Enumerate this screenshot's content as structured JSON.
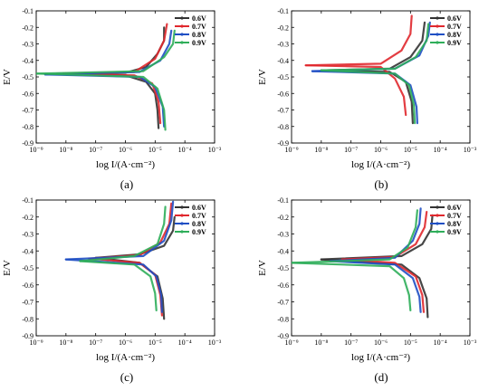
{
  "chart_data": [
    {
      "type": "line",
      "panel_label": "(a)",
      "xlabel": "log I/(A·cm⁻²)",
      "ylabel": "E/V",
      "x_scale": "log",
      "xlim": [
        1e-09,
        0.001
      ],
      "ylim": [
        -0.9,
        -0.1
      ],
      "x_tick_labels": [
        "10⁻⁹",
        "10⁻⁸",
        "10⁻⁷",
        "10⁻⁶",
        "10⁻⁵",
        "10⁻⁴",
        "10⁻³"
      ],
      "y_tick_labels": [
        "-0.9",
        "-0.8",
        "-0.7",
        "-0.6",
        "-0.5",
        "-0.4",
        "-0.3",
        "-0.2",
        "-0.1"
      ],
      "legend_position": "top-right",
      "series": [
        {
          "name": "0.6V",
          "color": "#333333",
          "x": [
            5e-09,
            1e-06,
            5e-06,
            1.2e-05,
            2e-05,
            2e-05
          ],
          "y": [
            -0.482,
            -0.475,
            -0.44,
            -0.36,
            -0.28,
            -0.2
          ]
        },
        {
          "name": "0.6V",
          "color": "#333333",
          "x": [
            5e-09,
            1e-06,
            5e-06,
            1e-05,
            1.2e-05,
            1.3e-05
          ],
          "y": [
            -0.482,
            -0.49,
            -0.53,
            -0.6,
            -0.7,
            -0.81
          ]
        },
        {
          "name": "0.7V",
          "color": "#e0282e",
          "x": [
            8e-09,
            2e-06,
            1e-05,
            2e-05,
            2.5e-05
          ],
          "y": [
            -0.48,
            -0.47,
            -0.39,
            -0.28,
            -0.18
          ]
        },
        {
          "name": "0.7V",
          "color": "#e0282e",
          "x": [
            8e-09,
            2e-06,
            8e-06,
            1.3e-05,
            1.5e-05
          ],
          "y": [
            -0.48,
            -0.49,
            -0.54,
            -0.65,
            -0.78
          ]
        },
        {
          "name": "0.8V",
          "color": "#1f4fc4",
          "x": [
            2e-09,
            3e-06,
            1.5e-05,
            3e-05,
            3.5e-05
          ],
          "y": [
            -0.485,
            -0.47,
            -0.4,
            -0.3,
            -0.22
          ]
        },
        {
          "name": "0.8V",
          "color": "#1f4fc4",
          "x": [
            2e-09,
            3e-06,
            1e-05,
            1.8e-05,
            2e-05
          ],
          "y": [
            -0.485,
            -0.5,
            -0.56,
            -0.68,
            -0.8
          ]
        },
        {
          "name": "0.9V",
          "color": "#2fae5a",
          "x": [
            1e-09,
            4e-06,
            2e-05,
            4e-05,
            4.5e-05
          ],
          "y": [
            -0.48,
            -0.465,
            -0.38,
            -0.3,
            -0.22
          ]
        },
        {
          "name": "0.9V",
          "color": "#2fae5a",
          "x": [
            1e-09,
            4e-06,
            1.2e-05,
            2e-05,
            2.2e-05
          ],
          "y": [
            -0.48,
            -0.5,
            -0.57,
            -0.7,
            -0.82
          ]
        }
      ]
    },
    {
      "type": "line",
      "panel_label": "(b)",
      "xlabel": "log I/(A·cm⁻²)",
      "ylabel": "E/V",
      "x_scale": "log",
      "xlim": [
        1e-09,
        0.001
      ],
      "ylim": [
        -0.9,
        -0.1
      ],
      "x_tick_labels": [
        "10⁻⁹",
        "10⁻⁸",
        "10⁻⁷",
        "10⁻⁶",
        "10⁻⁵",
        "10⁻⁴",
        "10⁻³"
      ],
      "y_tick_labels": [
        "-0.9",
        "-0.8",
        "-0.7",
        "-0.6",
        "-0.5",
        "-0.4",
        "-0.3",
        "-0.2",
        "-0.1"
      ],
      "legend_position": "top-right",
      "series": [
        {
          "name": "0.6V",
          "color": "#333333",
          "x": [
            1e-08,
            2e-06,
            1e-05,
            2.5e-05,
            3e-05
          ],
          "y": [
            -0.46,
            -0.45,
            -0.38,
            -0.28,
            -0.17
          ]
        },
        {
          "name": "0.6V",
          "color": "#333333",
          "x": [
            1e-08,
            2e-06,
            7e-06,
            1.1e-05,
            1.2e-05
          ],
          "y": [
            -0.46,
            -0.47,
            -0.53,
            -0.65,
            -0.78
          ]
        },
        {
          "name": "0.7V",
          "color": "#e0282e",
          "x": [
            3e-09,
            1e-06,
            5e-06,
            1e-05,
            1.1e-05
          ],
          "y": [
            -0.43,
            -0.42,
            -0.34,
            -0.24,
            -0.13
          ]
        },
        {
          "name": "0.7V",
          "color": "#e0282e",
          "x": [
            3e-09,
            1e-06,
            3e-06,
            6e-06,
            7e-06
          ],
          "y": [
            -0.43,
            -0.44,
            -0.51,
            -0.62,
            -0.73
          ]
        },
        {
          "name": "0.8V",
          "color": "#1f4fc4",
          "x": [
            5e-09,
            3e-06,
            2e-05,
            4e-05,
            4.5e-05
          ],
          "y": [
            -0.465,
            -0.45,
            -0.37,
            -0.25,
            -0.17
          ]
        },
        {
          "name": "0.8V",
          "color": "#1f4fc4",
          "x": [
            5e-09,
            3e-06,
            1e-05,
            1.6e-05,
            1.7e-05
          ],
          "y": [
            -0.465,
            -0.48,
            -0.55,
            -0.68,
            -0.78
          ]
        },
        {
          "name": "0.9V",
          "color": "#2fae5a",
          "x": [
            1e-08,
            3e-06,
            1.5e-05,
            3.5e-05,
            4e-05
          ],
          "y": [
            -0.46,
            -0.45,
            -0.38,
            -0.28,
            -0.18
          ]
        },
        {
          "name": "0.9V",
          "color": "#2fae5a",
          "x": [
            1e-08,
            3e-06,
            9e-06,
            1.3e-05,
            1.4e-05
          ],
          "y": [
            -0.46,
            -0.48,
            -0.55,
            -0.67,
            -0.78
          ]
        }
      ]
    },
    {
      "type": "line",
      "panel_label": "(c)",
      "xlabel": "log I/(A·cm⁻²)",
      "ylabel": "E/V",
      "x_scale": "log",
      "xlim": [
        1e-09,
        0.001
      ],
      "ylim": [
        -0.9,
        -0.1
      ],
      "x_tick_labels": [
        "10⁻⁹",
        "10⁻⁸",
        "10⁻⁷",
        "10⁻⁶",
        "10⁻⁵",
        "10⁻⁴",
        "10⁻³"
      ],
      "y_tick_labels": [
        "-0.9",
        "-0.8",
        "-0.7",
        "-0.6",
        "-0.5",
        "-0.4",
        "-0.3",
        "-0.2",
        "-0.1"
      ],
      "legend_position": "top-right",
      "series": [
        {
          "name": "0.6V",
          "color": "#333333",
          "x": [
            1e-07,
            3e-06,
            2e-05,
            4e-05,
            4.5e-05
          ],
          "y": [
            -0.44,
            -0.42,
            -0.37,
            -0.28,
            -0.2
          ]
        },
        {
          "name": "0.6V",
          "color": "#333333",
          "x": [
            1e-07,
            3e-06,
            1.2e-05,
            1.8e-05,
            2e-05
          ],
          "y": [
            -0.44,
            -0.47,
            -0.55,
            -0.68,
            -0.8
          ]
        },
        {
          "name": "0.7V",
          "color": "#e0282e",
          "x": [
            6e-08,
            3e-06,
            1.5e-05,
            3e-05,
            3.5e-05
          ],
          "y": [
            -0.445,
            -0.425,
            -0.35,
            -0.24,
            -0.12
          ]
        },
        {
          "name": "0.7V",
          "color": "#e0282e",
          "x": [
            6e-08,
            3e-06,
            1e-05,
            1.5e-05,
            1.7e-05
          ],
          "y": [
            -0.445,
            -0.47,
            -0.54,
            -0.66,
            -0.78
          ]
        },
        {
          "name": "0.8V",
          "color": "#1f4fc4",
          "x": [
            1e-08,
            4e-06,
            2e-05,
            3.5e-05,
            4e-05
          ],
          "y": [
            -0.45,
            -0.43,
            -0.34,
            -0.22,
            -0.11
          ]
        },
        {
          "name": "0.8V",
          "color": "#1f4fc4",
          "x": [
            1e-08,
            4e-06,
            1.1e-05,
            1.6e-05,
            1.7e-05
          ],
          "y": [
            -0.45,
            -0.48,
            -0.55,
            -0.66,
            -0.76
          ]
        },
        {
          "name": "0.9V",
          "color": "#2fae5a",
          "x": [
            3e-08,
            2e-06,
            1.2e-05,
            2e-05,
            2.2e-05
          ],
          "y": [
            -0.46,
            -0.43,
            -0.36,
            -0.24,
            -0.14
          ]
        },
        {
          "name": "0.9V",
          "color": "#2fae5a",
          "x": [
            3e-08,
            2e-06,
            7e-06,
            1e-05,
            1.1e-05
          ],
          "y": [
            -0.46,
            -0.48,
            -0.55,
            -0.65,
            -0.75
          ]
        }
      ]
    },
    {
      "type": "line",
      "panel_label": "(d)",
      "xlabel": "log I/(A·cm⁻²)",
      "ylabel": "E/V",
      "x_scale": "log",
      "xlim": [
        1e-09,
        0.001
      ],
      "ylim": [
        -0.9,
        -0.1
      ],
      "x_tick_labels": [
        "10⁻⁹",
        "10⁻⁸",
        "10⁻⁷",
        "10⁻⁶",
        "10⁻⁵",
        "10⁻⁴",
        "10⁻³"
      ],
      "y_tick_labels": [
        "-0.9",
        "-0.8",
        "-0.7",
        "-0.6",
        "-0.5",
        "-0.4",
        "-0.3",
        "-0.2",
        "-0.1"
      ],
      "legend_position": "top-right",
      "series": [
        {
          "name": "0.6V",
          "color": "#333333",
          "x": [
            1e-08,
            5e-06,
            2.5e-05,
            5e-05,
            5.5e-05
          ],
          "y": [
            -0.45,
            -0.43,
            -0.36,
            -0.27,
            -0.19
          ]
        },
        {
          "name": "0.6V",
          "color": "#333333",
          "x": [
            1e-08,
            5e-06,
            2e-05,
            3.5e-05,
            3.8e-05
          ],
          "y": [
            -0.45,
            -0.48,
            -0.56,
            -0.68,
            -0.79
          ]
        },
        {
          "name": "0.7V",
          "color": "#e0282e",
          "x": [
            5e-08,
            3e-06,
            1.5e-05,
            3e-05,
            3.5e-05
          ],
          "y": [
            -0.45,
            -0.435,
            -0.36,
            -0.26,
            -0.17
          ]
        },
        {
          "name": "0.7V",
          "color": "#e0282e",
          "x": [
            5e-08,
            3e-06,
            1.5e-05,
            2.5e-05,
            2.8e-05
          ],
          "y": [
            -0.45,
            -0.47,
            -0.55,
            -0.66,
            -0.76
          ]
        },
        {
          "name": "0.8V",
          "color": "#1f4fc4",
          "x": [
            2e-08,
            3e-06,
            1.2e-05,
            2e-05,
            2.2e-05
          ],
          "y": [
            -0.46,
            -0.44,
            -0.34,
            -0.24,
            -0.15
          ]
        },
        {
          "name": "0.8V",
          "color": "#1f4fc4",
          "x": [
            2e-08,
            3e-06,
            1.2e-05,
            2e-05,
            2.2e-05
          ],
          "y": [
            -0.46,
            -0.48,
            -0.56,
            -0.67,
            -0.76
          ]
        },
        {
          "name": "0.9V",
          "color": "#2fae5a",
          "x": [
            1e-09,
            2e-06,
            8e-06,
            1.5e-05,
            1.7e-05
          ],
          "y": [
            -0.47,
            -0.45,
            -0.38,
            -0.26,
            -0.16
          ]
        },
        {
          "name": "0.9V",
          "color": "#2fae5a",
          "x": [
            1e-09,
            2e-06,
            6e-06,
            9e-06,
            1e-05
          ],
          "y": [
            -0.47,
            -0.49,
            -0.56,
            -0.66,
            -0.75
          ]
        }
      ]
    }
  ]
}
